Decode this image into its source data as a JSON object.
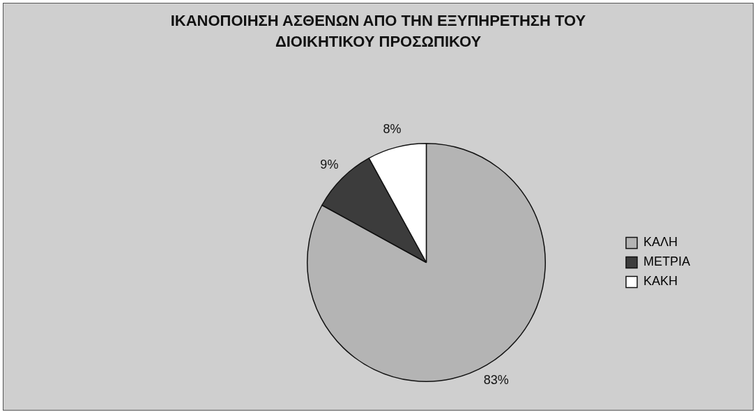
{
  "chart_data": {
    "type": "pie",
    "title": "ΙΚΑΝΟΠΟΙΗΣΗ ΑΣΘΕΝΩΝ ΑΠΟ ΤΗΝ ΕΞΥΠΗΡΕΤΗΣΗ ΤΟΥ ΔΙΟΙΚΗΤΙΚΟΥ ΠΡΟΣΩΠΙΚΟΥ",
    "categories": [
      "ΚΑΛΗ",
      "ΜΕΤΡΙΑ",
      "ΚΑΚΗ"
    ],
    "values": [
      83,
      9,
      8
    ],
    "colors": [
      "#b4b4b4",
      "#3c3c3c",
      "#ffffff"
    ],
    "value_labels": [
      "83%",
      "9%",
      "8%"
    ],
    "legend": "right"
  }
}
